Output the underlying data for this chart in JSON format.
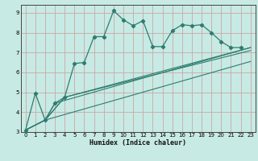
{
  "xlabel": "Humidex (Indice chaleur)",
  "bg_color": "#c8eae4",
  "line_color": "#2d7d6f",
  "grid_color": "#b0d0cc",
  "xlim": [
    -0.5,
    23.5
  ],
  "ylim": [
    3,
    9.4
  ],
  "xticks": [
    0,
    1,
    2,
    3,
    4,
    5,
    6,
    7,
    8,
    9,
    10,
    11,
    12,
    13,
    14,
    15,
    16,
    17,
    18,
    19,
    20,
    21,
    22,
    23
  ],
  "yticks": [
    3,
    4,
    5,
    6,
    7,
    8,
    9
  ],
  "main_line_x": [
    0,
    1,
    2,
    3,
    4,
    5,
    6,
    7,
    8,
    9,
    10,
    11,
    12,
    13,
    14,
    15,
    16,
    17,
    18,
    19,
    20,
    21,
    22
  ],
  "main_line_y": [
    3.1,
    4.95,
    3.6,
    4.45,
    4.75,
    6.45,
    6.5,
    7.8,
    7.8,
    9.1,
    8.65,
    8.35,
    8.6,
    7.3,
    7.3,
    8.1,
    8.4,
    8.35,
    8.4,
    8.0,
    7.55,
    7.25,
    7.25
  ],
  "ref_line1_x": [
    0,
    2,
    3,
    23
  ],
  "ref_line1_y": [
    3.1,
    3.6,
    4.45,
    7.25
  ],
  "ref_line2_x": [
    0,
    2,
    4,
    23
  ],
  "ref_line2_y": [
    3.1,
    3.6,
    4.75,
    7.25
  ],
  "ref_line3_x": [
    0,
    2,
    4,
    23
  ],
  "ref_line3_y": [
    3.1,
    3.6,
    4.75,
    7.1
  ],
  "ref_line4_x": [
    0,
    2,
    23
  ],
  "ref_line4_y": [
    3.1,
    3.6,
    6.55
  ]
}
